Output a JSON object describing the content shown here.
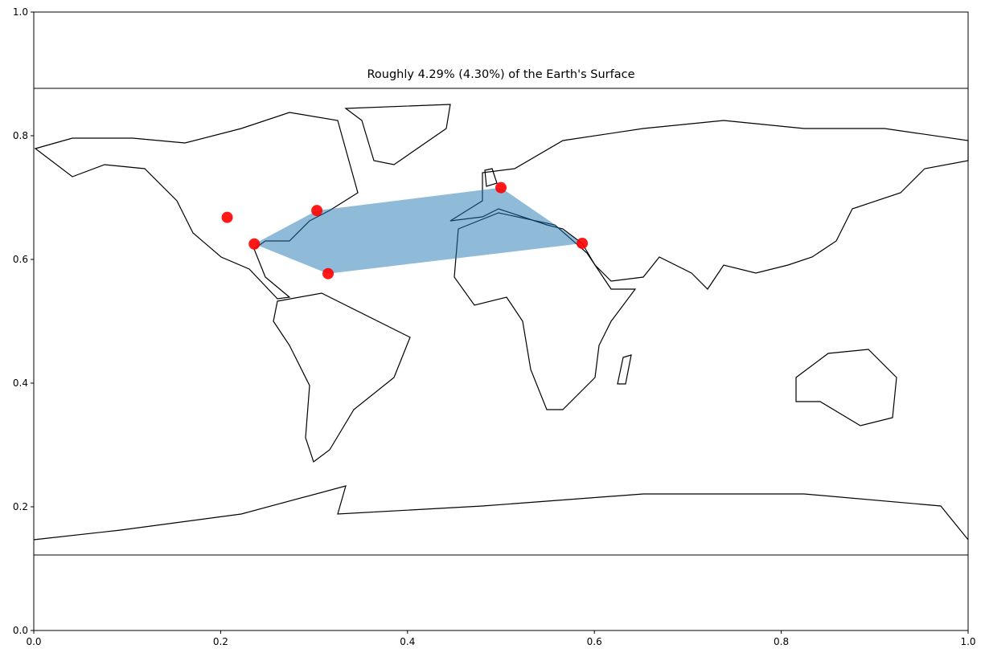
{
  "chart_data": {
    "type": "scatter",
    "title": "Roughly 4.29% (4.30%) of the Earth's Surface",
    "xlim": [
      0,
      1
    ],
    "ylim": [
      0,
      1
    ],
    "xticks": [
      {
        "value": 0,
        "label": "0.0"
      },
      0.2,
      0.4,
      0.6,
      0.8,
      {
        "value": 1,
        "label": "1.0"
      }
    ],
    "yticks": [
      {
        "value": 0,
        "label": "0.0"
      },
      0.2,
      0.4,
      0.6,
      0.8,
      {
        "value": 1,
        "label": "1.0"
      }
    ],
    "series": [
      {
        "color": "#ff0000",
        "x": [
          0.207,
          0.303,
          0.236,
          0.315,
          0.5,
          0.587
        ],
        "y": [
          0.668,
          0.679,
          0.625,
          0.577,
          0.716,
          0.626
        ]
      }
    ],
    "polygon": {
      "color": "#1f77b4",
      "x": [
        0.236,
        0.303,
        0.5,
        0.587,
        0.315
      ],
      "y": [
        0.625,
        0.679,
        0.716,
        0.626,
        0.577
      ]
    }
  }
}
